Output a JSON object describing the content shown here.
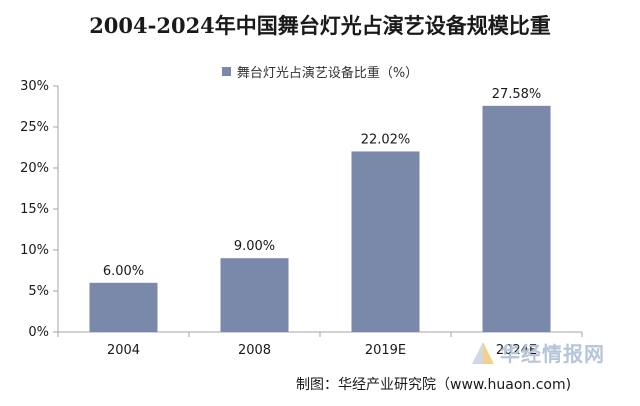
{
  "chart_data": {
    "type": "bar",
    "title": "2004-2024年中国舞台灯光占演艺设备规模比重",
    "categories": [
      "2004",
      "2008",
      "2019E",
      "2024E"
    ],
    "series": [
      {
        "name": "舞台灯光占演艺设备比重（%）",
        "values": [
          6.0,
          9.0,
          22.02,
          27.58
        ]
      }
    ],
    "data_labels": [
      "6.00%",
      "9.00%",
      "22.02%",
      "27.58%"
    ],
    "y_ticks": [
      "0%",
      "5%",
      "10%",
      "15%",
      "20%",
      "25%",
      "30%"
    ],
    "ylim": [
      0,
      30
    ],
    "grid": false,
    "legend_position": "top-center"
  },
  "source": "制图：华经产业研究院（www.huaon.com)",
  "watermark": "华经情报网",
  "colors": {
    "bar": "#7a88aa",
    "axis": "#a6a6a6"
  }
}
